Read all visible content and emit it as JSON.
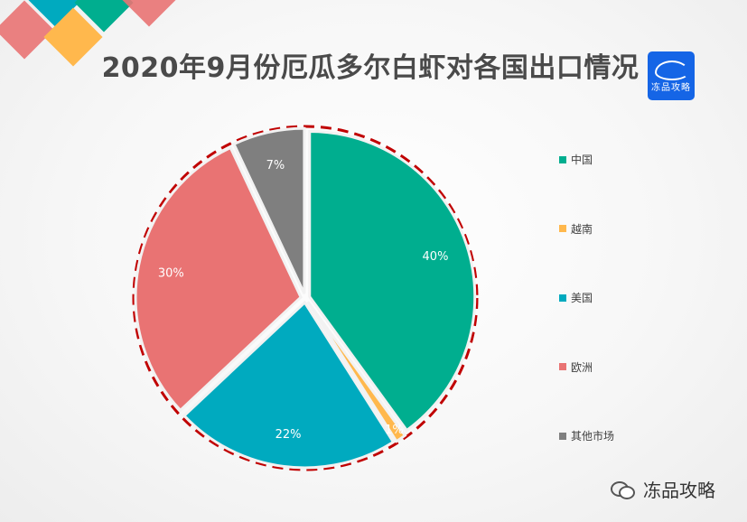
{
  "title": "2020年9月份厄瓜多尔白虾对各国出口情况",
  "logo": {
    "text": "冻品攻略"
  },
  "footer": {
    "text": "冻品攻略"
  },
  "colors": {
    "decor": [
      "#e57373",
      "#ffb74d",
      "#26a69a",
      "#00acc1"
    ],
    "dashed_ring": "#c00000"
  },
  "chart_data": {
    "type": "pie",
    "title": "2020年9月份厄瓜多尔白虾对各国出口情况",
    "legend_position": "right",
    "slices": [
      {
        "label": "中国",
        "value": 40,
        "display": "40%",
        "color": "#00ae8f"
      },
      {
        "label": "越南",
        "value": 1,
        "display": "1%",
        "color": "#ffb84d"
      },
      {
        "label": "美国",
        "value": 22,
        "display": "22%",
        "color": "#00aabf"
      },
      {
        "label": "欧洲",
        "value": 30,
        "display": "30%",
        "color": "#e97373"
      },
      {
        "label": "其他市场",
        "value": 7,
        "display": "7%",
        "color": "#7f7f7f"
      }
    ]
  }
}
